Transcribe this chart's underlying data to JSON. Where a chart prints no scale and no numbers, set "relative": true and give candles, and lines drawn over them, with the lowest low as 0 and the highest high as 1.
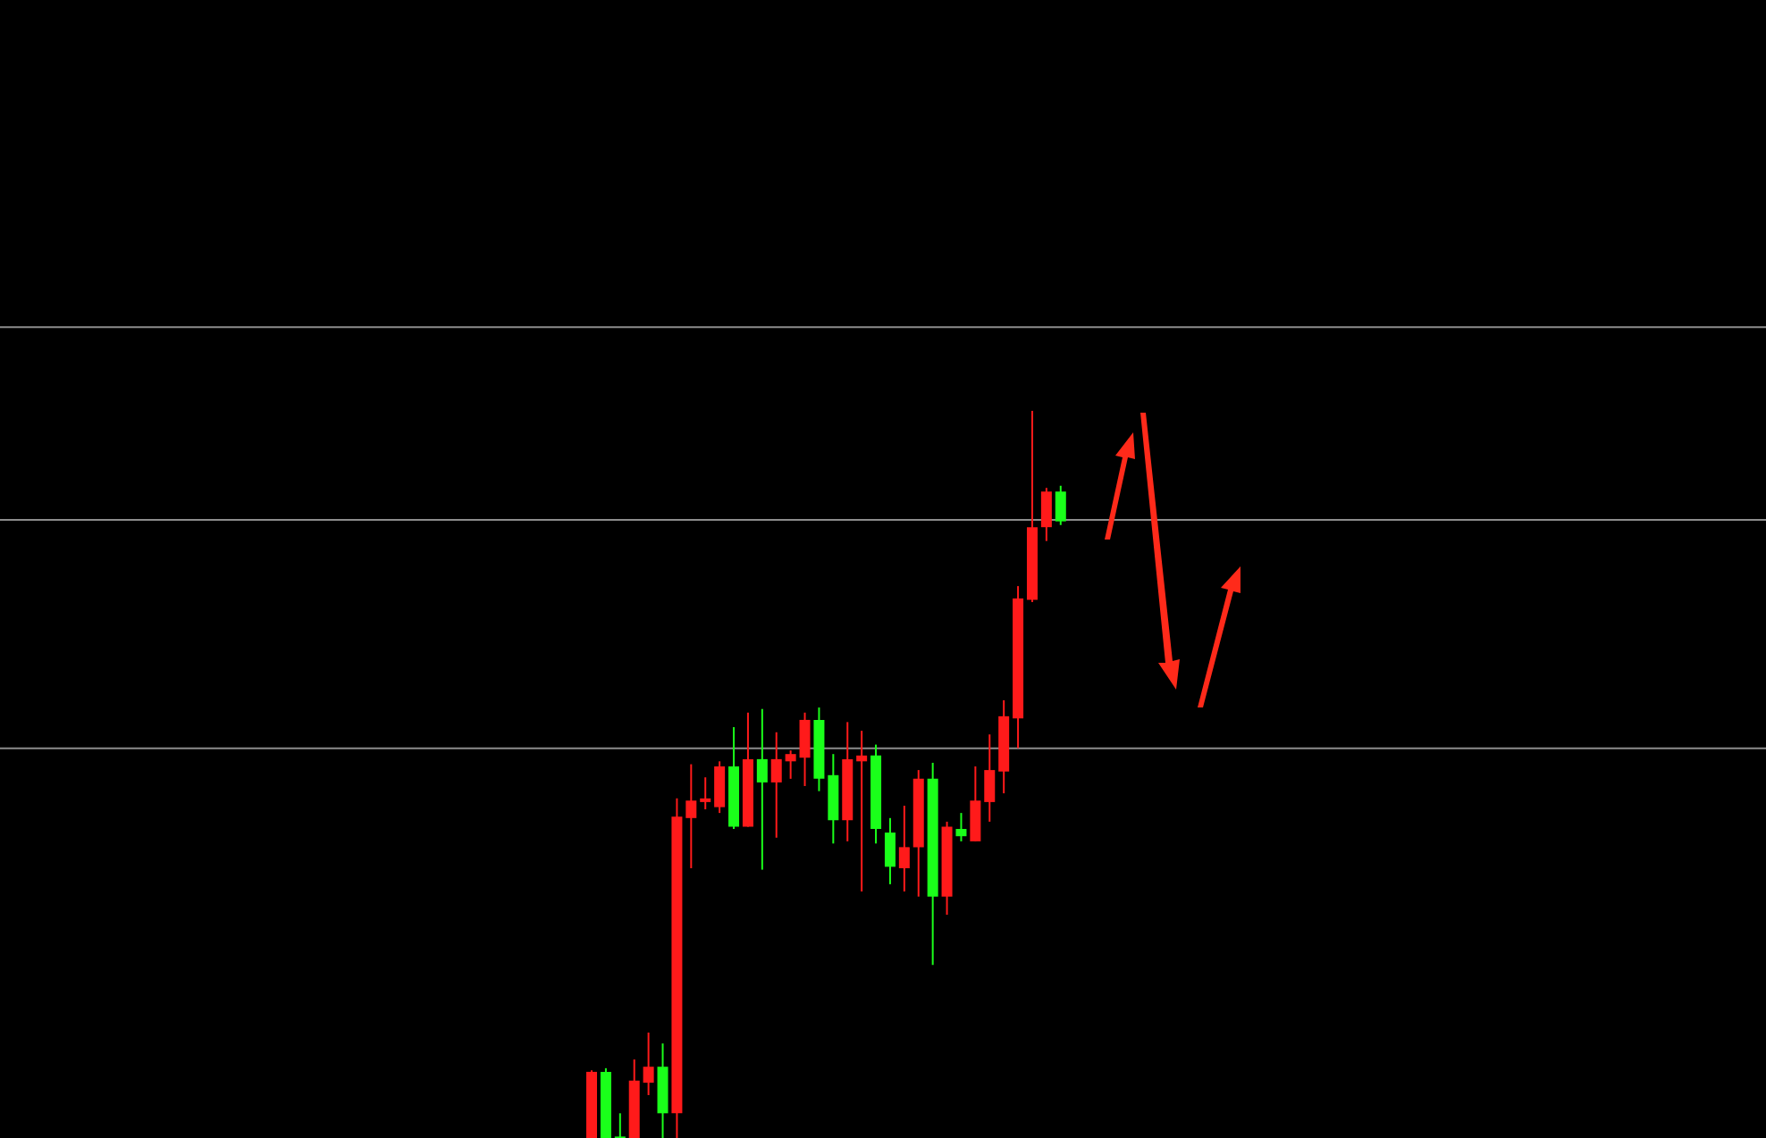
{
  "chart_data": {
    "type": "candlestick",
    "relative": true,
    "categories": [
      null,
      null,
      null,
      null,
      null,
      null,
      null,
      null,
      null,
      null,
      null,
      null,
      null,
      null,
      null,
      null,
      null,
      null,
      null,
      null,
      null,
      null,
      null,
      null,
      null,
      null,
      null,
      null,
      null,
      null,
      null,
      null,
      null,
      null
    ],
    "ohlc": [
      [
        0,
        0.093,
        0,
        0.091
      ],
      [
        0.091,
        0.096,
        0,
        0
      ],
      [
        0.002,
        0.034,
        0,
        0
      ],
      [
        0,
        0.108,
        0,
        0.079
      ],
      [
        0.076,
        0.145,
        0.059,
        0.098
      ],
      [
        0.098,
        0.13,
        0,
        0.034
      ],
      [
        0.034,
        0.467,
        0,
        0.442
      ],
      [
        0.44,
        0.514,
        0.371,
        0.464
      ],
      [
        0.462,
        0.496,
        0.452,
        0.467
      ],
      [
        0.455,
        0.518,
        0.447,
        0.511
      ],
      [
        0.511,
        0.565,
        0.425,
        0.428
      ],
      [
        0.428,
        0.585,
        0.428,
        0.521
      ],
      [
        0.521,
        0.59,
        0.369,
        0.489
      ],
      [
        0.489,
        0.558,
        0.413,
        0.521
      ],
      [
        0.518,
        0.533,
        0.494,
        0.528
      ],
      [
        0.523,
        0.585,
        0.484,
        0.575
      ],
      [
        0.575,
        0.592,
        0.477,
        0.494
      ],
      [
        0.499,
        0.528,
        0.405,
        0.437
      ],
      [
        0.437,
        0.572,
        0.408,
        0.521
      ],
      [
        0.518,
        0.56,
        0.339,
        0.526
      ],
      [
        0.526,
        0.541,
        0.405,
        0.425
      ],
      [
        0.42,
        0.44,
        0.349,
        0.373
      ],
      [
        0.371,
        0.457,
        0.339,
        0.4
      ],
      [
        0.4,
        0.506,
        0.332,
        0.494
      ],
      [
        0.494,
        0.516,
        0.238,
        0.332
      ],
      [
        0.332,
        0.435,
        0.307,
        0.428
      ],
      [
        0.425,
        0.447,
        0.408,
        0.415
      ],
      [
        0.408,
        0.511,
        0.408,
        0.464
      ],
      [
        0.462,
        0.555,
        0.435,
        0.506
      ],
      [
        0.504,
        0.602,
        0.474,
        0.58
      ],
      [
        0.577,
        0.759,
        0.536,
        0.742
      ],
      [
        0.74,
        1,
        0.737,
        0.84
      ],
      [
        0.84,
        0.894,
        0.821,
        0.889
      ],
      [
        0.889,
        0.897,
        0.843,
        0.848
      ]
    ],
    "ref_lines": [
      {
        "axis": "y",
        "value": 1.115,
        "color": "#8c8c8c"
      },
      {
        "axis": "y",
        "value": 0.85,
        "color": "#8c8c8c"
      },
      {
        "axis": "y",
        "value": 0.536,
        "color": "#8c8c8c"
      }
    ]
  }
}
